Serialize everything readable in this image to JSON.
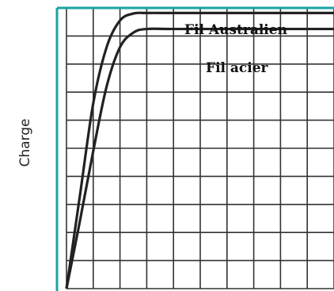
{
  "chart_data": {
    "type": "line",
    "title": "",
    "xlabel": "",
    "ylabel": "Charge",
    "xlim": [
      0,
      10
    ],
    "ylim": [
      0,
      10
    ],
    "grid": true,
    "series": [
      {
        "name": "Fil Australien",
        "x": [
          0,
          0.5,
          1.0,
          1.5,
          2.0,
          2.5,
          3.0,
          4.0,
          6.0,
          10.0
        ],
        "y": [
          0,
          3.3,
          6.6,
          8.6,
          9.55,
          9.8,
          9.82,
          9.82,
          9.82,
          9.82
        ]
      },
      {
        "name": "Fil acier",
        "x": [
          0,
          0.5,
          1.0,
          1.5,
          2.0,
          2.5,
          3.0,
          4.0,
          6.0,
          10.0
        ],
        "y": [
          0,
          2.4,
          4.9,
          7.2,
          8.6,
          9.12,
          9.25,
          9.25,
          9.25,
          9.25
        ]
      }
    ],
    "colors": {
      "frame": "#1aa3a3",
      "grid": "#333333",
      "line": "#222222"
    }
  }
}
